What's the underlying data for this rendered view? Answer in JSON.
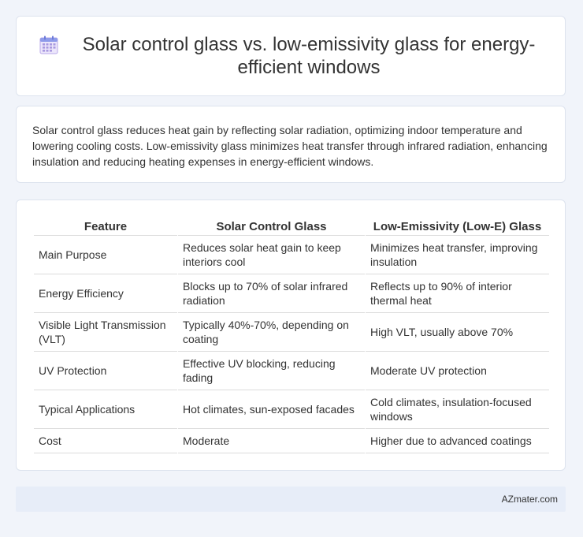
{
  "header": {
    "icon": "calendar-icon",
    "title": "Solar control glass vs. low-emissivity glass for energy-efficient windows"
  },
  "summary": "Solar control glass reduces heat gain by reflecting solar radiation, optimizing indoor temperature and lowering cooling costs. Low-emissivity glass minimizes heat transfer through infrared radiation, enhancing insulation and reducing heating expenses in energy-efficient windows.",
  "table": {
    "headers": [
      "Feature",
      "Solar Control Glass",
      "Low-Emissivity (Low-E) Glass"
    ],
    "rows": [
      [
        "Main Purpose",
        "Reduces solar heat gain to keep interiors cool",
        "Minimizes heat transfer, improving insulation"
      ],
      [
        "Energy Efficiency",
        "Blocks up to 70% of solar infrared radiation",
        "Reflects up to 90% of interior thermal heat"
      ],
      [
        "Visible Light Transmission (VLT)",
        "Typically 40%-70%, depending on coating",
        "High VLT, usually above 70%"
      ],
      [
        "UV Protection",
        "Effective UV blocking, reducing fading",
        "Moderate UV protection"
      ],
      [
        "Typical Applications",
        "Hot climates, sun-exposed facades",
        "Cold climates, insulation-focused windows"
      ],
      [
        "Cost",
        "Moderate",
        "Higher due to advanced coatings"
      ]
    ]
  },
  "footer": {
    "brand": "AZmater.com"
  }
}
